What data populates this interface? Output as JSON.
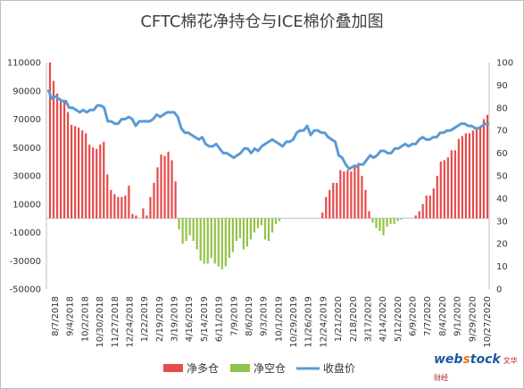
{
  "chart_data": {
    "type": "bar",
    "title": "CFTC棉花净持仓与ICE棉价叠加图",
    "y_left": {
      "min": -50000,
      "max": 110000,
      "step": 20000,
      "ticks": [
        "110000",
        "90000",
        "70000",
        "50000",
        "30000",
        "10000",
        "-10000",
        "-30000",
        "-50000"
      ]
    },
    "y_right": {
      "min": 0,
      "max": 100,
      "step": 10,
      "ticks": [
        "100",
        "90",
        "80",
        "70",
        "60",
        "50",
        "40",
        "30",
        "20",
        "10",
        "0"
      ]
    },
    "x_labels": [
      "8/7/2018",
      "9/4/2018",
      "10/2/2018",
      "10/30/2018",
      "11/27/2018",
      "12/24/2018",
      "1/22/2019",
      "2/19/2019",
      "3/19/2019",
      "4/16/2019",
      "5/14/2019",
      "6/11/2019",
      "7/9/2019",
      "8/6/2019",
      "9/3/2019",
      "10/1/2019",
      "10/29/2019",
      "11/26/2019",
      "12/24/2019",
      "1/21/2020",
      "2/18/2020",
      "3/17/2020",
      "4/14/2020",
      "5/12/2020",
      "6/9/2020",
      "7/7/2020",
      "8/4/2020",
      "9/1/2020",
      "9/29/2020",
      "10/27/2020"
    ],
    "series": [
      {
        "name": "净多仓",
        "color": "#e84a4a",
        "values": [
          110000,
          97000,
          88000,
          84000,
          82000,
          75000,
          66000,
          65000,
          64000,
          62000,
          60000,
          52000,
          50000,
          49000,
          52000,
          54000,
          31000,
          20000,
          17000,
          15000,
          15000,
          16000,
          23000,
          3000,
          2000,
          0,
          7000,
          2000,
          15000,
          25000,
          36000,
          45000,
          44000,
          47000,
          41000,
          26000,
          0,
          0,
          0,
          0,
          0,
          0,
          0,
          0,
          0,
          0,
          0,
          0,
          0,
          0,
          0,
          0,
          0,
          0,
          0,
          0,
          0,
          0,
          0,
          0,
          0,
          0,
          0,
          0,
          0,
          0,
          0,
          0,
          0,
          0,
          0,
          0,
          0,
          0,
          0,
          0,
          4000,
          15000,
          20000,
          25000,
          25000,
          34000,
          33000,
          34000,
          33000,
          38000,
          39000,
          30000,
          20000,
          5000,
          0,
          0,
          0,
          0,
          0,
          0,
          0,
          0,
          0,
          0,
          0,
          0,
          2000,
          5000,
          10000,
          16000,
          16000,
          21000,
          30000,
          40000,
          41000,
          43000,
          48000,
          48000,
          56000,
          58000,
          60000,
          60000,
          62000,
          63000,
          65000,
          70000,
          73000
        ]
      },
      {
        "name": "净空仓",
        "color": "#92c346",
        "values": [
          0,
          0,
          0,
          0,
          0,
          0,
          0,
          0,
          0,
          0,
          0,
          0,
          0,
          0,
          0,
          0,
          0,
          0,
          0,
          0,
          0,
          0,
          0,
          0,
          0,
          0,
          0,
          0,
          0,
          0,
          0,
          0,
          0,
          0,
          0,
          0,
          -8000,
          -18000,
          -16000,
          -12000,
          -16000,
          -22000,
          -30000,
          -32000,
          -32000,
          -28000,
          -32000,
          -34000,
          -36000,
          -34000,
          -28000,
          -24000,
          -16000,
          -14000,
          -22000,
          -20000,
          -15000,
          -10000,
          -7000,
          -5000,
          -15000,
          -16000,
          -10000,
          -4000,
          -2000,
          0,
          0,
          0,
          0,
          0,
          0,
          0,
          0,
          0,
          0,
          0,
          0,
          0,
          0,
          0,
          0,
          0,
          0,
          0,
          0,
          0,
          0,
          0,
          0,
          0,
          -3000,
          -7000,
          -9000,
          -12000,
          -6000,
          -4000,
          -4000,
          -2000,
          -1000,
          0,
          0,
          0,
          0,
          0,
          0,
          0,
          0,
          0,
          0,
          0,
          0,
          0,
          0,
          0,
          0,
          0,
          0,
          0,
          0,
          0,
          0,
          0,
          0,
          0,
          0
        ]
      },
      {
        "name": "收盘价",
        "color": "#5b9bd5",
        "type": "line",
        "axis": "right",
        "values": [
          88,
          84,
          85,
          84,
          83,
          83,
          80,
          80,
          79,
          78,
          79,
          78,
          79,
          79,
          81,
          81,
          80,
          74,
          74,
          73,
          73,
          75,
          75,
          76,
          75,
          72,
          74,
          74,
          74,
          74,
          75,
          77,
          76,
          77,
          78,
          78,
          78,
          76,
          71,
          69,
          69,
          68,
          67,
          66,
          67,
          64,
          63,
          63,
          64,
          62,
          60,
          60,
          59,
          58,
          59,
          60,
          62,
          62,
          60,
          62,
          61,
          63,
          64,
          65,
          66,
          65,
          64,
          63,
          65,
          65,
          66,
          69,
          70,
          70,
          72,
          68,
          70,
          70,
          69,
          69,
          67,
          66,
          65,
          59,
          58,
          55,
          53,
          54,
          54,
          55,
          55,
          57,
          59,
          58,
          59,
          61,
          61,
          60,
          60,
          62,
          62,
          63,
          64,
          63,
          64,
          64,
          66,
          67,
          66,
          66,
          67,
          67,
          69,
          69,
          70,
          70,
          71,
          72,
          73,
          73,
          72,
          72,
          71,
          71,
          72,
          73,
          73
        ]
      }
    ],
    "legend": [
      "净多仓",
      "净空仓",
      "收盘价"
    ],
    "legend_position": "bottom",
    "grid": false
  },
  "watermark": {
    "brand_prefix": "web",
    "brand_o": "s",
    "brand_suffix": "tock",
    "cn": "文华财经"
  }
}
